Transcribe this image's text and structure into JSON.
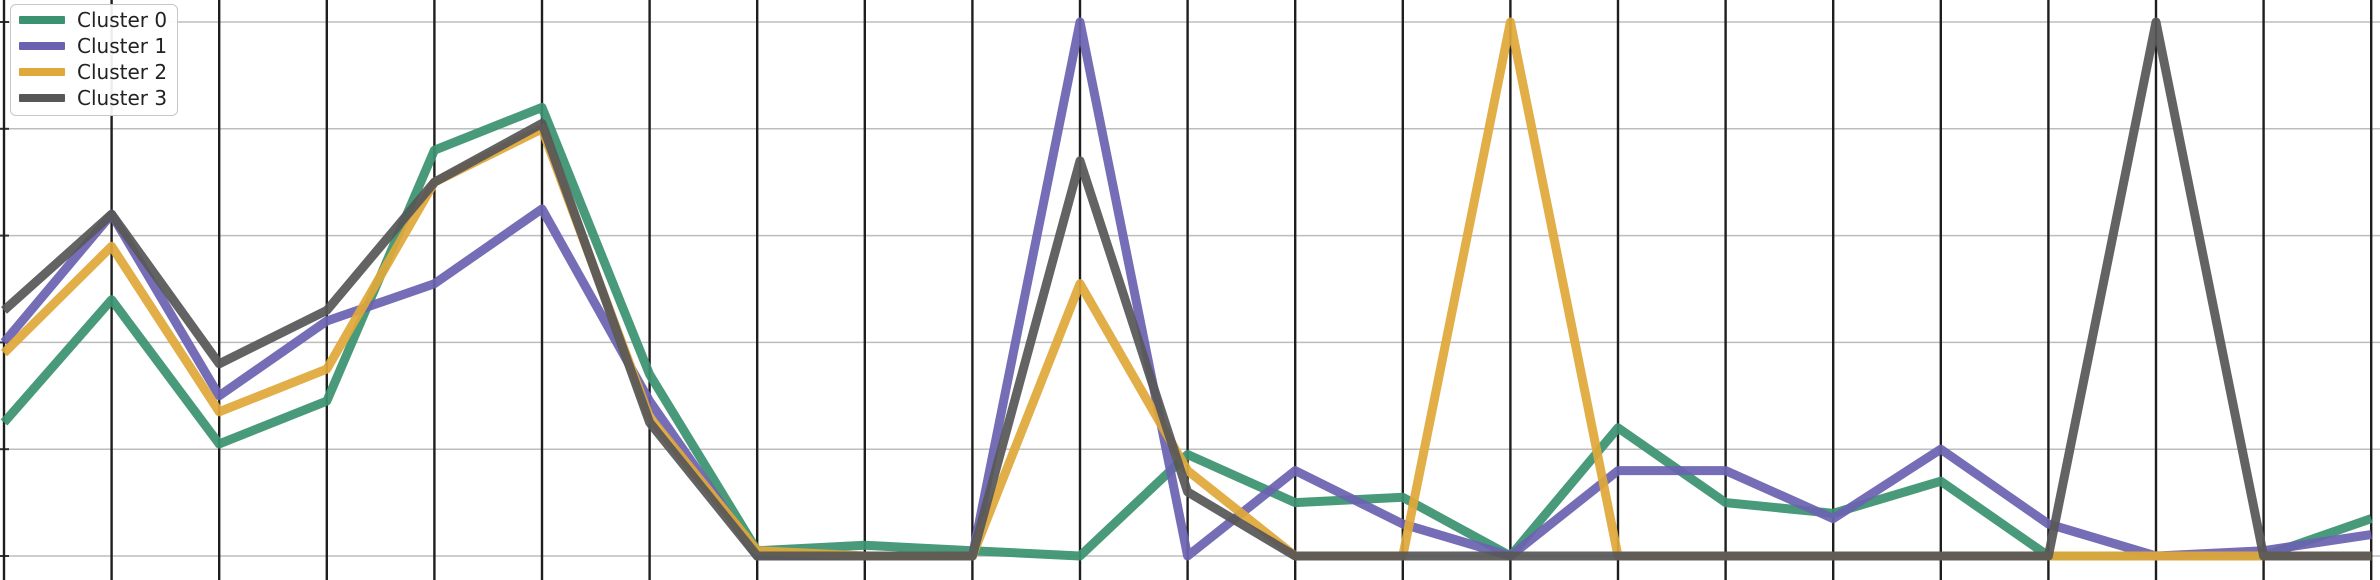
{
  "chart_data": {
    "type": "line",
    "title": "",
    "xlabel": "",
    "ylabel": "",
    "ylim": [
      0,
      1
    ],
    "grid": true,
    "legend_position": "top-left",
    "x_count": 23,
    "series": [
      {
        "name": "Cluster 0",
        "color": "#3a9270",
        "values": [
          0.25,
          0.48,
          0.21,
          0.29,
          0.76,
          0.84,
          0.34,
          0.01,
          0.02,
          0.01,
          0.0,
          0.19,
          0.1,
          0.11,
          0.0,
          0.24,
          0.1,
          0.08,
          0.14,
          0.0,
          0.0,
          0.0,
          0.07
        ]
      },
      {
        "name": "Cluster 1",
        "color": "#6a62b0",
        "values": [
          0.4,
          0.64,
          0.3,
          0.44,
          0.51,
          0.65,
          0.29,
          0.0,
          0.0,
          0.0,
          1.0,
          0.0,
          0.16,
          0.06,
          0.0,
          0.16,
          0.16,
          0.07,
          0.2,
          0.06,
          0.0,
          0.01,
          0.04
        ]
      },
      {
        "name": "Cluster 2",
        "color": "#e0a83a",
        "values": [
          0.38,
          0.58,
          0.27,
          0.35,
          0.7,
          0.8,
          0.26,
          0.01,
          0.0,
          0.0,
          0.51,
          0.16,
          0.0,
          0.0,
          1.0,
          0.0,
          0.0,
          0.0,
          0.0,
          0.0,
          0.0,
          0.0,
          0.0
        ]
      },
      {
        "name": "Cluster 3",
        "color": "#575757",
        "values": [
          0.46,
          0.64,
          0.36,
          0.46,
          0.7,
          0.81,
          0.25,
          0.0,
          0.0,
          0.0,
          0.74,
          0.12,
          0.0,
          0.0,
          0.0,
          0.0,
          0.0,
          0.0,
          0.0,
          0.0,
          1.0,
          0.0,
          0.0
        ]
      }
    ]
  }
}
